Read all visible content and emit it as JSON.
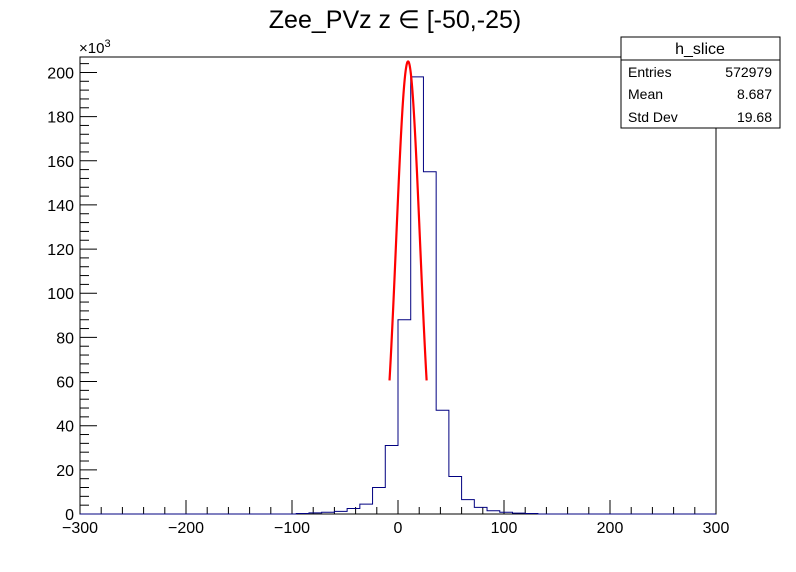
{
  "chart_data": {
    "type": "histogram",
    "title": "Zee_PVz z  ∈ [-50,-25)",
    "xlabel": "",
    "ylabel": "",
    "xlim": [
      -300,
      300
    ],
    "ylim": [
      0,
      207
    ],
    "y_multiplier_label": "×10",
    "y_multiplier_exponent": "3",
    "x_ticks": [
      -300,
      -200,
      -100,
      0,
      100,
      200,
      300
    ],
    "x_tick_labels": [
      "−300",
      "−200",
      "−100",
      "0",
      "100",
      "200",
      "300"
    ],
    "y_ticks": [
      0,
      20,
      40,
      60,
      80,
      100,
      120,
      140,
      160,
      180,
      200
    ],
    "y_tick_labels": [
      "0",
      "20",
      "40",
      "60",
      "80",
      "100",
      "120",
      "140",
      "160",
      "180",
      "200"
    ],
    "bin_width": 12,
    "bin_edges_start": -300,
    "histogram_values": [
      0,
      0,
      0,
      0,
      0,
      0,
      0,
      0,
      0,
      0,
      0,
      0,
      0,
      0,
      0,
      0,
      0,
      0.2,
      0.5,
      0.8,
      1.2,
      2.5,
      4.5,
      12,
      31,
      88,
      198,
      155,
      47,
      17,
      6.5,
      3,
      1.5,
      0.8,
      0.4,
      0.2,
      0,
      0,
      0,
      0,
      0,
      0,
      0,
      0,
      0,
      0,
      0,
      0,
      0,
      0
    ],
    "fit": {
      "name": "gaus",
      "amplitude": 205,
      "mean": 9.5,
      "sigma": 11.2,
      "xmin": -8,
      "xmax": 27
    },
    "grid": false,
    "histogram_color": "#000080",
    "fit_color": "#ff0000"
  },
  "stats_box": {
    "name": "h_slice",
    "rows": [
      {
        "label": "Entries",
        "value": "572979"
      },
      {
        "label": "Mean",
        "value": "8.687"
      },
      {
        "label": "Std Dev",
        "value": "19.68"
      }
    ]
  }
}
